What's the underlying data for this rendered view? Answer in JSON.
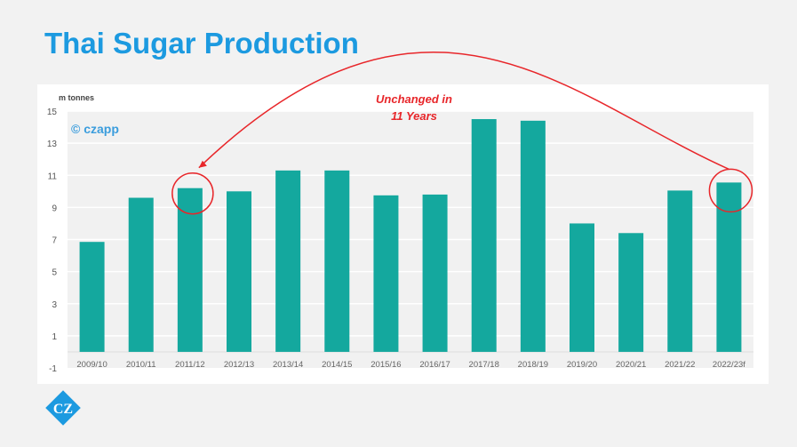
{
  "slide": {
    "title": "Thai Sugar Production"
  },
  "chart_data": {
    "type": "bar",
    "title": "Thai Sugar Production",
    "ylabel": "m tonnes",
    "xlabel": "",
    "ylim": [
      -1,
      15
    ],
    "yticks": [
      -1,
      1,
      3,
      5,
      7,
      9,
      11,
      13,
      15
    ],
    "grid": true,
    "categories": [
      "2009/10",
      "2010/11",
      "2011/12",
      "2012/13",
      "2013/14",
      "2014/15",
      "2015/16",
      "2016/17",
      "2017/18",
      "2018/19",
      "2019/20",
      "2020/21",
      "2021/22",
      "2022/23f"
    ],
    "values": [
      6.85,
      9.6,
      10.2,
      10.0,
      11.3,
      11.3,
      9.75,
      9.8,
      14.5,
      14.4,
      8.0,
      7.4,
      10.05,
      10.55
    ],
    "bar_color": "#14a89e",
    "watermark": "© czapp",
    "annotation": {
      "line1": "Unchanged in",
      "line2": "11 Years",
      "from": "2022/23f",
      "to": "2011/12",
      "color": "#e8262a"
    }
  },
  "brand": {
    "logo_text": "CZ",
    "color": "#1c9ae0"
  }
}
